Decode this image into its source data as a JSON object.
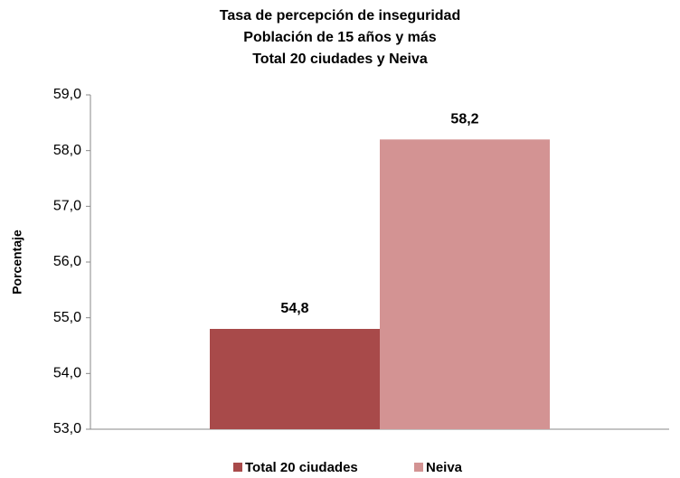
{
  "chart_data": {
    "type": "bar",
    "title": [
      "Tasa de percepción de inseguridad",
      "Población de 15 años y más",
      "Total 20 ciudades y Neiva"
    ],
    "y_label": "Porcentaje",
    "categories": [
      null
    ],
    "series": [
      {
        "name": "Total 20 ciudades",
        "color": "#a84a4a",
        "values": [
          54.8
        ],
        "value_labels": [
          "54,8"
        ]
      },
      {
        "name": "Neiva",
        "color": "#d39393",
        "values": [
          58.2
        ],
        "value_labels": [
          "58,2"
        ]
      }
    ],
    "ylim": [
      53,
      59
    ],
    "yticks": [
      {
        "value": 53,
        "label": "53,0"
      },
      {
        "value": 54,
        "label": "54,0"
      },
      {
        "value": 55,
        "label": "55,0"
      },
      {
        "value": 56,
        "label": "56,0"
      },
      {
        "value": 57,
        "label": "57,0"
      },
      {
        "value": 58,
        "label": "58,0"
      },
      {
        "value": 59,
        "label": "59,0"
      }
    ],
    "grid": false,
    "legend": "bottom"
  }
}
